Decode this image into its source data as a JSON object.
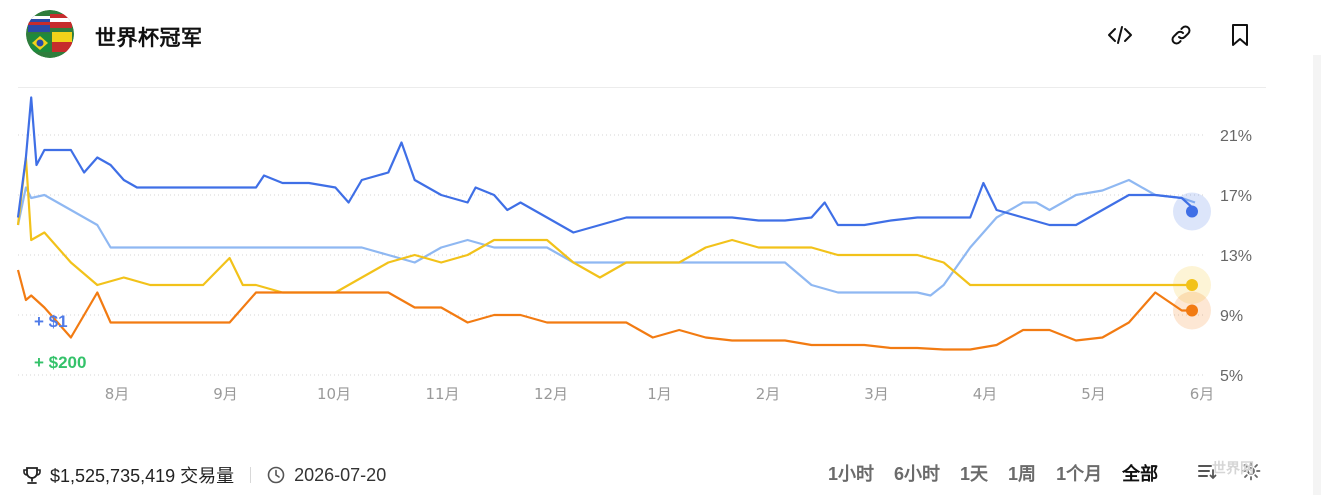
{
  "header": {
    "title": "世界杯冠军",
    "icons": [
      "embed-icon",
      "link-icon",
      "bookmark-icon"
    ]
  },
  "chart_data": {
    "type": "line",
    "x_axis_labels": [
      "8月",
      "9月",
      "10月",
      "11月",
      "12月",
      "1月",
      "2月",
      "3月",
      "4月",
      "5月",
      "6月"
    ],
    "y_axis_labels": [
      "21%",
      "17%",
      "13%",
      "9%",
      "5%"
    ],
    "ylim": [
      5,
      23
    ],
    "grid": true,
    "y_axis_position": "right",
    "annotations": [
      {
        "text": "+ $1",
        "color": "#4f7be8"
      },
      {
        "text": "+ $200",
        "color": "#34c26a"
      }
    ],
    "series": [
      {
        "color": "#3f6fe6",
        "end_value": 15.9,
        "points": [
          [
            0,
            15.5
          ],
          [
            0.3,
            19.5
          ],
          [
            0.5,
            23.5
          ],
          [
            0.7,
            19
          ],
          [
            1,
            20
          ],
          [
            2,
            20
          ],
          [
            2.5,
            18.5
          ],
          [
            3,
            19.5
          ],
          [
            3.5,
            19
          ],
          [
            4,
            18
          ],
          [
            4.5,
            17.5
          ],
          [
            5,
            17.5
          ],
          [
            6,
            17.5
          ],
          [
            7,
            17.5
          ],
          [
            8,
            17.5
          ],
          [
            9,
            17.5
          ],
          [
            9.3,
            18.3
          ],
          [
            10,
            17.8
          ],
          [
            11,
            17.8
          ],
          [
            12,
            17.5
          ],
          [
            12.5,
            16.5
          ],
          [
            13,
            18
          ],
          [
            14,
            18.5
          ],
          [
            14.5,
            20.5
          ],
          [
            15,
            18
          ],
          [
            16,
            17
          ],
          [
            17,
            16.5
          ],
          [
            17.3,
            17.5
          ],
          [
            18,
            17
          ],
          [
            18.5,
            16
          ],
          [
            19,
            16.5
          ],
          [
            20,
            15.5
          ],
          [
            21,
            14.5
          ],
          [
            22,
            15
          ],
          [
            23,
            15.5
          ],
          [
            24,
            15.5
          ],
          [
            25,
            15.5
          ],
          [
            26,
            15.5
          ],
          [
            27,
            15.5
          ],
          [
            28,
            15.3
          ],
          [
            29,
            15.3
          ],
          [
            30,
            15.5
          ],
          [
            30.5,
            16.5
          ],
          [
            31,
            15
          ],
          [
            32,
            15
          ],
          [
            33,
            15.3
          ],
          [
            34,
            15.5
          ],
          [
            35,
            15.5
          ],
          [
            36,
            15.5
          ],
          [
            36.5,
            17.8
          ],
          [
            37,
            16
          ],
          [
            38,
            15.5
          ],
          [
            39,
            15
          ],
          [
            40,
            15
          ],
          [
            41,
            16
          ],
          [
            42,
            17
          ],
          [
            43,
            17
          ],
          [
            44,
            16.8
          ],
          [
            44.5,
            16
          ]
        ]
      },
      {
        "color": "#8fb8f2",
        "end_value": 16.5,
        "points": [
          [
            0,
            15
          ],
          [
            0.3,
            17.5
          ],
          [
            0.5,
            16.8
          ],
          [
            1,
            17
          ],
          [
            2,
            16
          ],
          [
            3,
            15
          ],
          [
            3.5,
            13.5
          ],
          [
            4,
            13.5
          ],
          [
            5,
            13.5
          ],
          [
            6,
            13.5
          ],
          [
            7,
            13.5
          ],
          [
            8,
            13.5
          ],
          [
            9,
            13.5
          ],
          [
            10,
            13.5
          ],
          [
            11,
            13.5
          ],
          [
            12,
            13.5
          ],
          [
            13,
            13.5
          ],
          [
            14,
            13
          ],
          [
            15,
            12.5
          ],
          [
            16,
            13.5
          ],
          [
            17,
            14
          ],
          [
            18,
            13.5
          ],
          [
            19,
            13.5
          ],
          [
            20,
            13.5
          ],
          [
            21,
            12.5
          ],
          [
            22,
            12.5
          ],
          [
            23,
            12.5
          ],
          [
            24,
            12.5
          ],
          [
            25,
            12.5
          ],
          [
            26,
            12.5
          ],
          [
            27,
            12.5
          ],
          [
            28,
            12.5
          ],
          [
            29,
            12.5
          ],
          [
            30,
            11
          ],
          [
            31,
            10.5
          ],
          [
            32,
            10.5
          ],
          [
            33,
            10.5
          ],
          [
            34,
            10.5
          ],
          [
            34.5,
            10.3
          ],
          [
            35,
            11
          ],
          [
            36,
            13.5
          ],
          [
            37,
            15.5
          ],
          [
            38,
            16.5
          ],
          [
            38.5,
            16.5
          ],
          [
            39,
            16
          ],
          [
            40,
            17
          ],
          [
            41,
            17.3
          ],
          [
            42,
            18
          ],
          [
            43,
            17
          ],
          [
            44,
            16.8
          ],
          [
            44.5,
            16.5
          ]
        ]
      },
      {
        "color": "#f2c21a",
        "end_value": 11.0,
        "points": [
          [
            0,
            15
          ],
          [
            0.3,
            19.5
          ],
          [
            0.5,
            14
          ],
          [
            1,
            14.5
          ],
          [
            2,
            12.5
          ],
          [
            3,
            11
          ],
          [
            4,
            11.5
          ],
          [
            5,
            11
          ],
          [
            6,
            11
          ],
          [
            7,
            11
          ],
          [
            8,
            12.8
          ],
          [
            8.5,
            11
          ],
          [
            9,
            11
          ],
          [
            10,
            10.5
          ],
          [
            11,
            10.5
          ],
          [
            12,
            10.5
          ],
          [
            13,
            11.5
          ],
          [
            14,
            12.5
          ],
          [
            15,
            13
          ],
          [
            16,
            12.5
          ],
          [
            17,
            13
          ],
          [
            18,
            14
          ],
          [
            19,
            14
          ],
          [
            20,
            14
          ],
          [
            21,
            12.5
          ],
          [
            22,
            11.5
          ],
          [
            23,
            12.5
          ],
          [
            24,
            12.5
          ],
          [
            25,
            12.5
          ],
          [
            26,
            13.5
          ],
          [
            27,
            14
          ],
          [
            28,
            13.5
          ],
          [
            29,
            13.5
          ],
          [
            30,
            13.5
          ],
          [
            31,
            13
          ],
          [
            32,
            13
          ],
          [
            33,
            13
          ],
          [
            34,
            13
          ],
          [
            35,
            12.5
          ],
          [
            36,
            11
          ],
          [
            37,
            11
          ],
          [
            38,
            11
          ],
          [
            39,
            11
          ],
          [
            40,
            11
          ],
          [
            41,
            11
          ],
          [
            42,
            11
          ],
          [
            43,
            11
          ],
          [
            44,
            11
          ],
          [
            44.5,
            11
          ]
        ]
      },
      {
        "color": "#f27b12",
        "end_value": 9.3,
        "points": [
          [
            0,
            12
          ],
          [
            0.3,
            10
          ],
          [
            0.5,
            10.3
          ],
          [
            1,
            9.5
          ],
          [
            2,
            7.5
          ],
          [
            3,
            10.5
          ],
          [
            3.5,
            8.5
          ],
          [
            4,
            8.5
          ],
          [
            5,
            8.5
          ],
          [
            6,
            8.5
          ],
          [
            7,
            8.5
          ],
          [
            8,
            8.5
          ],
          [
            9,
            10.5
          ],
          [
            10,
            10.5
          ],
          [
            11,
            10.5
          ],
          [
            12,
            10.5
          ],
          [
            13,
            10.5
          ],
          [
            14,
            10.5
          ],
          [
            15,
            9.5
          ],
          [
            16,
            9.5
          ],
          [
            17,
            8.5
          ],
          [
            18,
            9
          ],
          [
            19,
            9
          ],
          [
            20,
            8.5
          ],
          [
            21,
            8.5
          ],
          [
            22,
            8.5
          ],
          [
            23,
            8.5
          ],
          [
            24,
            7.5
          ],
          [
            25,
            8
          ],
          [
            26,
            7.5
          ],
          [
            27,
            7.3
          ],
          [
            28,
            7.3
          ],
          [
            29,
            7.3
          ],
          [
            30,
            7
          ],
          [
            31,
            7
          ],
          [
            32,
            7
          ],
          [
            33,
            6.8
          ],
          [
            34,
            6.8
          ],
          [
            35,
            6.7
          ],
          [
            36,
            6.7
          ],
          [
            37,
            7
          ],
          [
            38,
            8
          ],
          [
            39,
            8
          ],
          [
            40,
            7.3
          ],
          [
            41,
            7.5
          ],
          [
            42,
            8.5
          ],
          [
            43,
            10.5
          ],
          [
            44,
            9.3
          ],
          [
            44.5,
            9.3
          ]
        ]
      }
    ]
  },
  "footer": {
    "volume": "$1,525,735,419 交易量",
    "date": "2026-07-20",
    "ranges": [
      "1小时",
      "6小时",
      "1天",
      "1周",
      "1个月",
      "全部"
    ],
    "active_range": "全部",
    "watermark": "世界网"
  }
}
